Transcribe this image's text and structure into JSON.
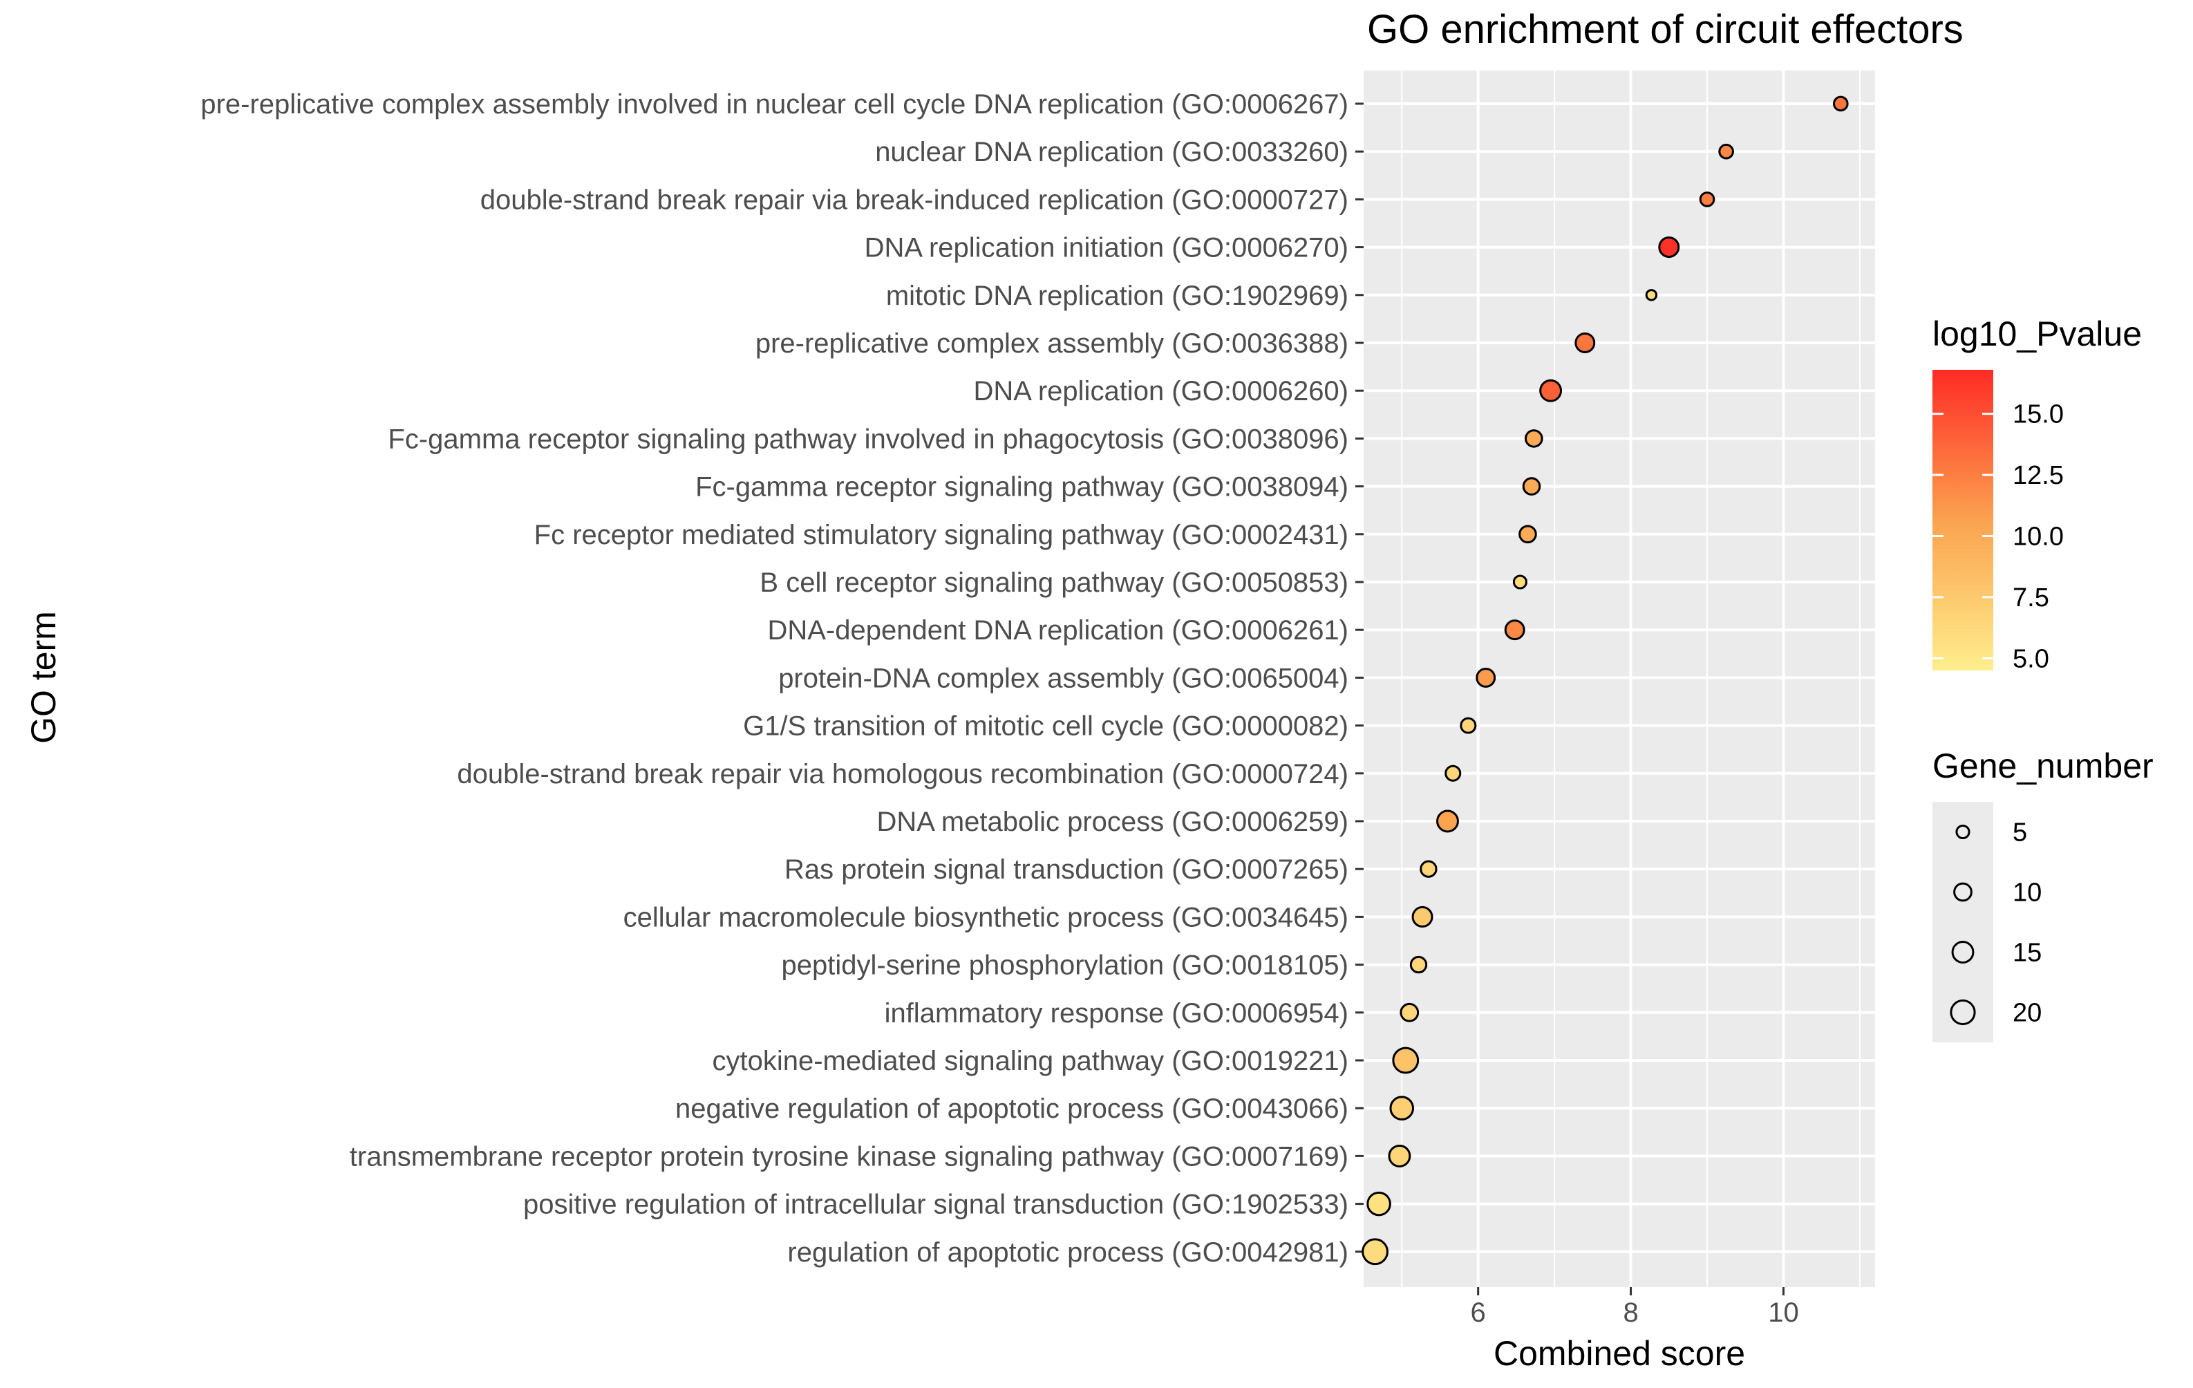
{
  "chart_data": {
    "type": "scatter",
    "title": "GO enrichment of circuit effectors",
    "xlabel": "Combined score",
    "ylabel": "GO term",
    "xlim": [
      4.5,
      11.2
    ],
    "xticks": [
      6,
      8,
      10
    ],
    "xtick_labels": [
      "6",
      "8",
      "10"
    ],
    "grid": true,
    "colors": {
      "panel_bg": "#ebebeb",
      "grid": "#ffffff",
      "low": "#ffee8c",
      "mid": "#fba24f",
      "high": "#ff2b25",
      "point_stroke": "#000000"
    },
    "color_legend": {
      "title": "log10_Pvalue",
      "range": [
        4.5,
        16.8
      ],
      "ticks": [
        5.0,
        7.5,
        10.0,
        12.5,
        15.0
      ],
      "tick_labels": [
        "5.0",
        "7.5",
        "10.0",
        "12.5",
        "15.0"
      ]
    },
    "size_legend": {
      "title": "Gene_number",
      "values": [
        5,
        10,
        15,
        20
      ],
      "labels": [
        "5",
        "10",
        "15",
        "20"
      ]
    },
    "terms": [
      {
        "label": "pre-replicative complex assembly involved in nuclear cell cycle DNA replication (GO:0006267)",
        "score": 10.75,
        "log10_pvalue": 13.0,
        "gene_number": 6
      },
      {
        "label": "nuclear DNA replication (GO:0033260)",
        "score": 9.25,
        "log10_pvalue": 12.0,
        "gene_number": 6
      },
      {
        "label": "double-strand break repair via break-induced replication (GO:0000727)",
        "score": 9.0,
        "log10_pvalue": 12.5,
        "gene_number": 6
      },
      {
        "label": "DNA replication initiation (GO:0006270)",
        "score": 8.5,
        "log10_pvalue": 16.5,
        "gene_number": 13
      },
      {
        "label": "mitotic DNA replication (GO:1902969)",
        "score": 8.27,
        "log10_pvalue": 6.0,
        "gene_number": 3
      },
      {
        "label": "pre-replicative complex assembly (GO:0036388)",
        "score": 7.4,
        "log10_pvalue": 13.0,
        "gene_number": 12
      },
      {
        "label": "DNA replication (GO:0006260)",
        "score": 6.95,
        "log10_pvalue": 14.0,
        "gene_number": 15
      },
      {
        "label": "Fc-gamma receptor signaling pathway involved in phagocytosis (GO:0038096)",
        "score": 6.73,
        "log10_pvalue": 10.0,
        "gene_number": 9
      },
      {
        "label": "Fc-gamma receptor signaling pathway (GO:0038094)",
        "score": 6.7,
        "log10_pvalue": 10.0,
        "gene_number": 9
      },
      {
        "label": "Fc receptor mediated stimulatory signaling pathway (GO:0002431)",
        "score": 6.65,
        "log10_pvalue": 10.0,
        "gene_number": 9
      },
      {
        "label": "B cell receptor signaling pathway (GO:0050853)",
        "score": 6.55,
        "log10_pvalue": 6.0,
        "gene_number": 5
      },
      {
        "label": "DNA-dependent DNA replication (GO:0006261)",
        "score": 6.48,
        "log10_pvalue": 12.0,
        "gene_number": 12
      },
      {
        "label": "protein-DNA complex assembly (GO:0065004)",
        "score": 6.1,
        "log10_pvalue": 11.0,
        "gene_number": 11
      },
      {
        "label": "G1/S transition of mitotic cell cycle (GO:0000082)",
        "score": 5.87,
        "log10_pvalue": 6.5,
        "gene_number": 7
      },
      {
        "label": "double-strand break repair via homologous recombination (GO:0000724)",
        "score": 5.67,
        "log10_pvalue": 6.5,
        "gene_number": 7
      },
      {
        "label": "DNA metabolic process (GO:0006259)",
        "score": 5.6,
        "log10_pvalue": 10.5,
        "gene_number": 15
      },
      {
        "label": "Ras protein signal transduction (GO:0007265)",
        "score": 5.35,
        "log10_pvalue": 6.5,
        "gene_number": 8
      },
      {
        "label": "cellular macromolecule biosynthetic process (GO:0034645)",
        "score": 5.27,
        "log10_pvalue": 7.5,
        "gene_number": 13
      },
      {
        "label": "peptidyl-serine phosphorylation (GO:0018105)",
        "score": 5.22,
        "log10_pvalue": 6.5,
        "gene_number": 8
      },
      {
        "label": "inflammatory response (GO:0006954)",
        "score": 5.1,
        "log10_pvalue": 6.5,
        "gene_number": 10
      },
      {
        "label": "cytokine-mediated signaling pathway (GO:0019221)",
        "score": 5.05,
        "log10_pvalue": 8.0,
        "gene_number": 22
      },
      {
        "label": "negative regulation of apoptotic process (GO:0043066)",
        "score": 5.0,
        "log10_pvalue": 7.0,
        "gene_number": 18
      },
      {
        "label": "transmembrane receptor protein tyrosine kinase signaling pathway (GO:0007169)",
        "score": 4.97,
        "log10_pvalue": 6.5,
        "gene_number": 15
      },
      {
        "label": "positive regulation of intracellular signal transduction (GO:1902533)",
        "score": 4.7,
        "log10_pvalue": 5.5,
        "gene_number": 18
      },
      {
        "label": "regulation of apoptotic process (GO:0042981)",
        "score": 4.65,
        "log10_pvalue": 6.0,
        "gene_number": 22
      }
    ]
  }
}
